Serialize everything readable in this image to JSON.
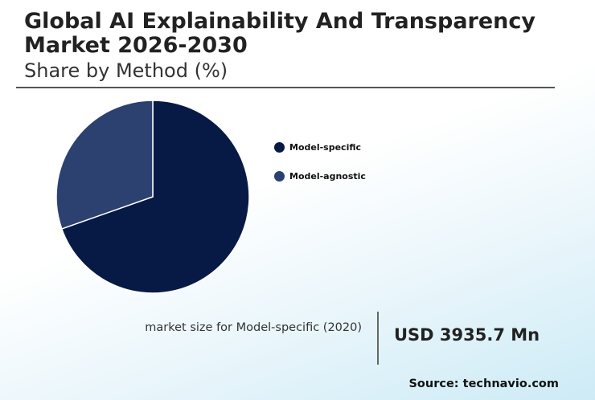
{
  "header": {
    "title": "Global AI Explainability And Transparency Market 2026-2030",
    "subtitle": "Share by Method (%)"
  },
  "chart_data": {
    "type": "pie",
    "categories": [
      "Model-specific",
      "Model-agnostic"
    ],
    "values": [
      69.6,
      30.4
    ],
    "colors": [
      "#071a45",
      "#2c4170"
    ],
    "legend_position": "right"
  },
  "stat": {
    "label": "market size for Model-specific (2020)",
    "value": "USD 3935.7 Mn"
  },
  "footer": {
    "source": "Source: technavio.com"
  }
}
